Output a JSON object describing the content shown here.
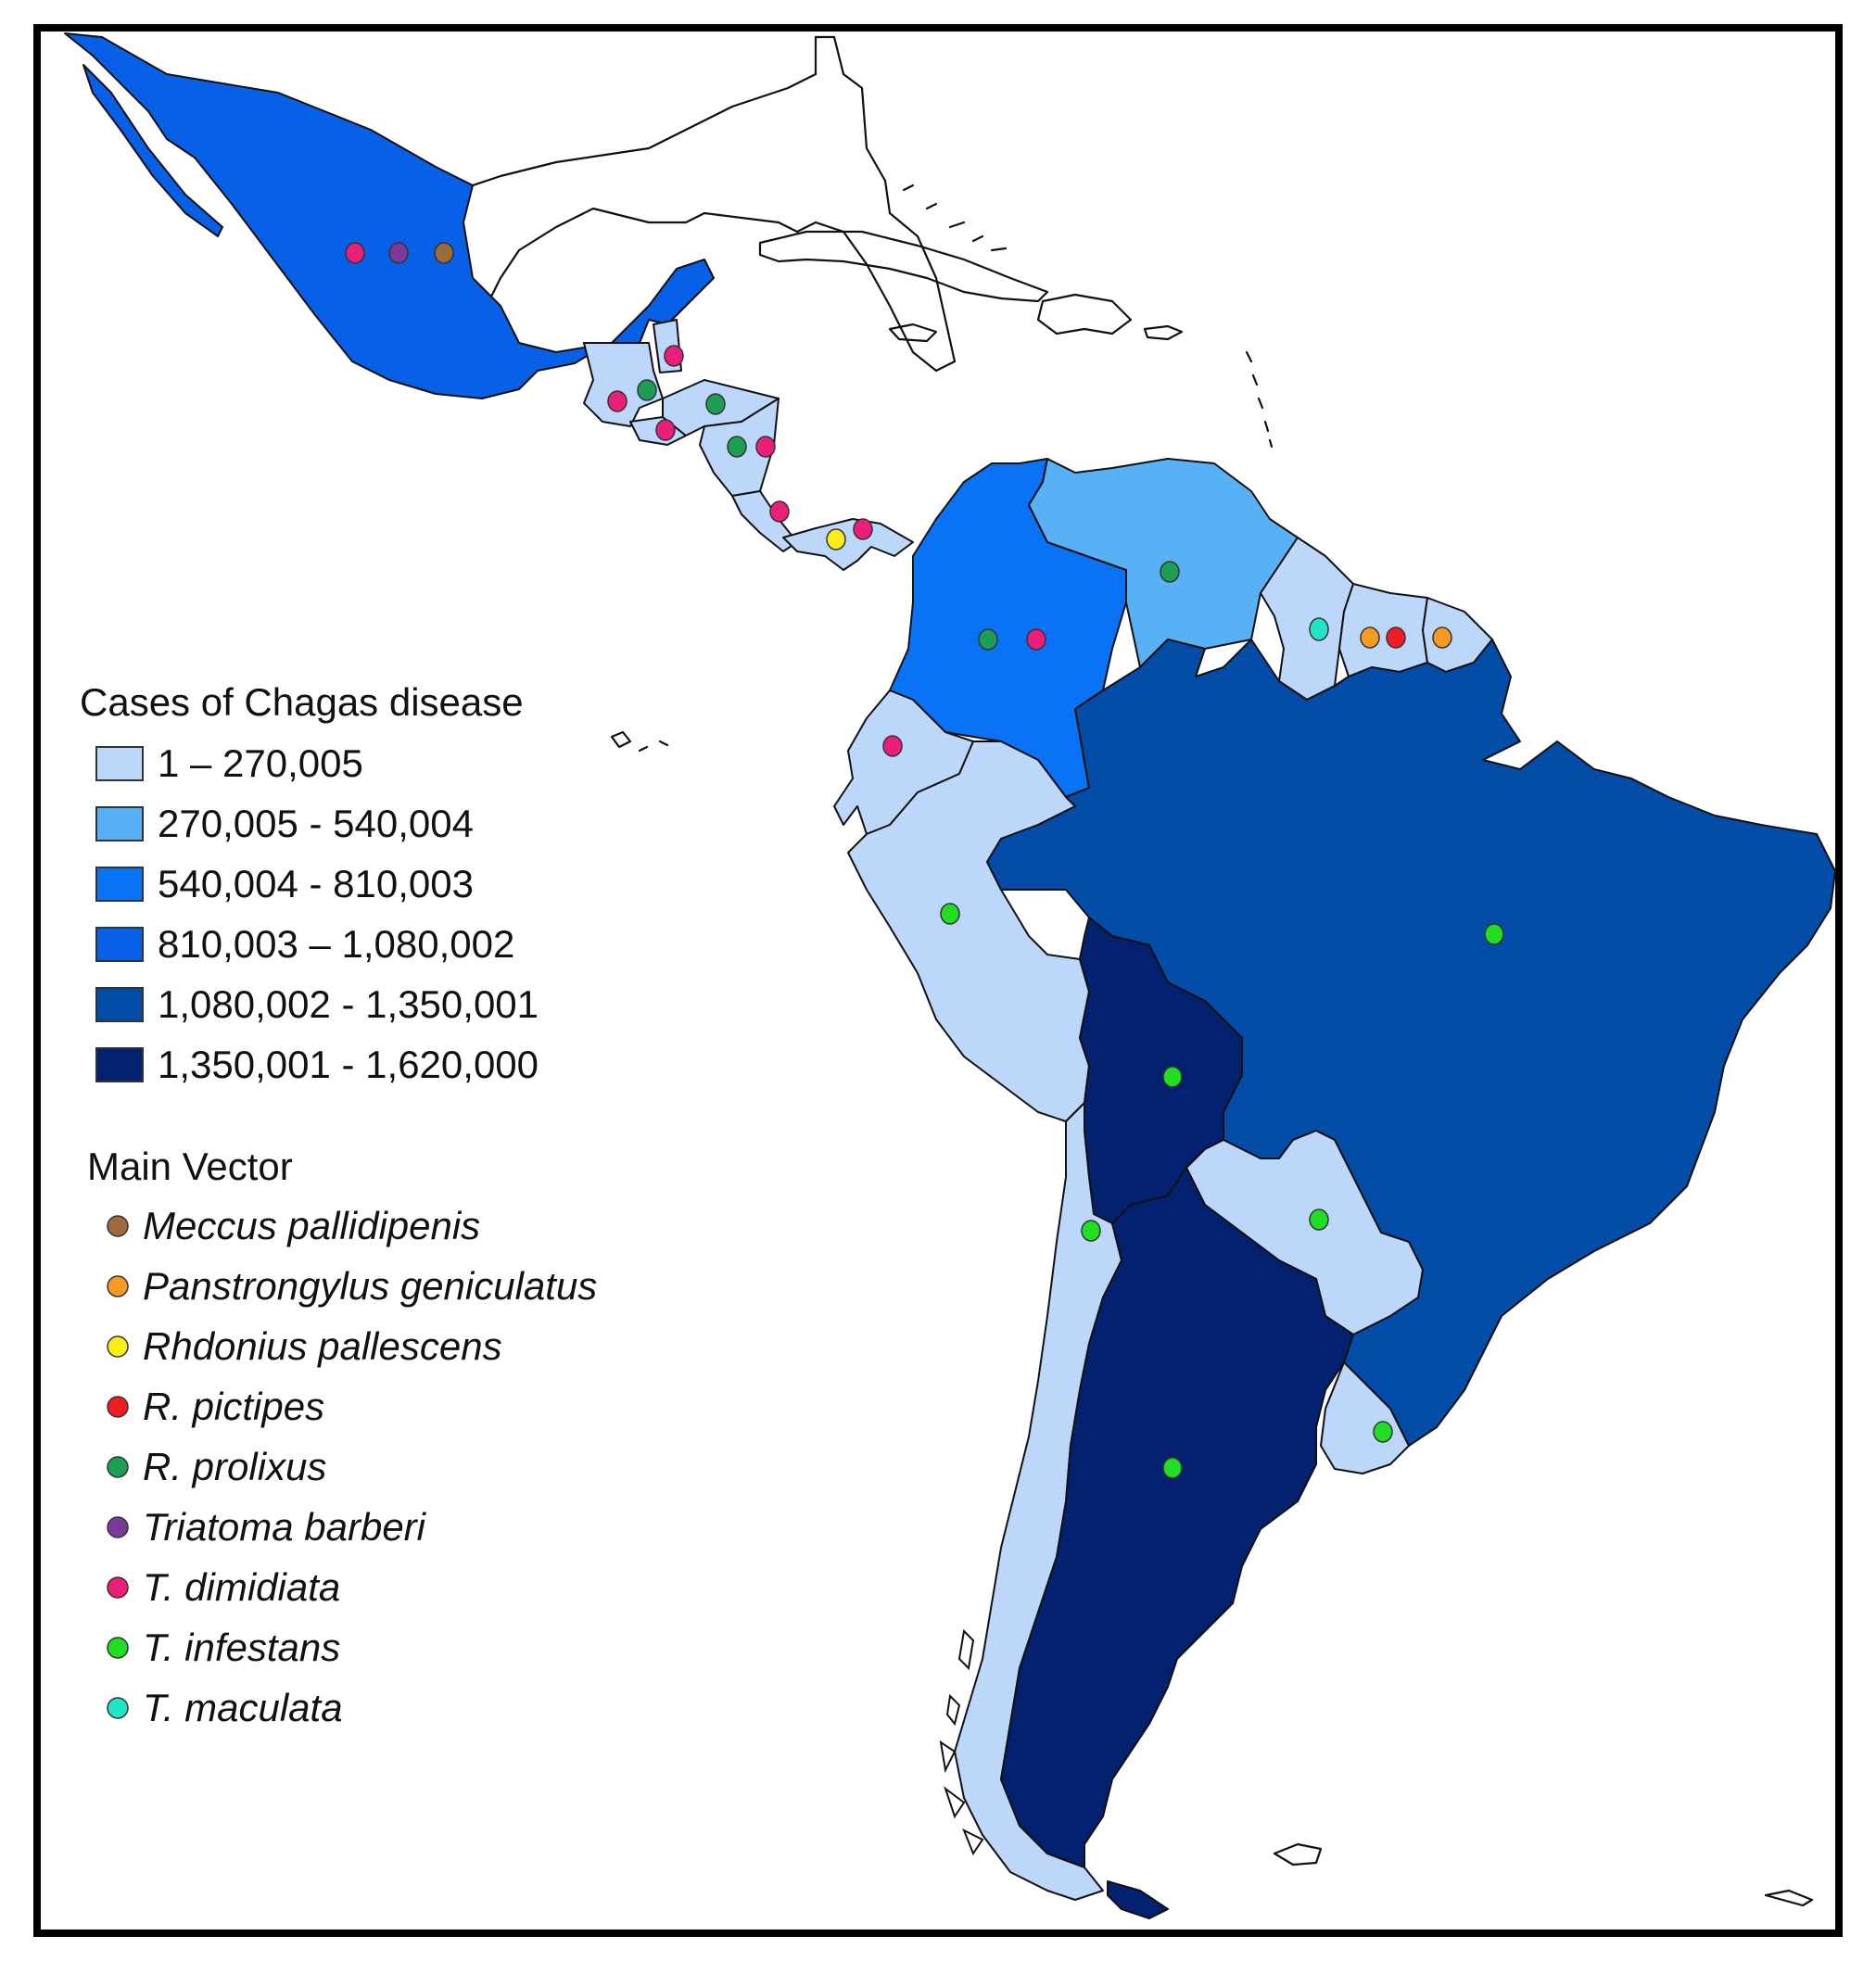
{
  "palette": {
    "c1": "#bdd7fb",
    "c2": "#58b0f5",
    "c3": "#0a72f4",
    "c4": "#0860e6",
    "c5": "#034ca8",
    "c6": "#03216e"
  },
  "legend_cases": {
    "title": "Cases of Chagas disease",
    "classes": [
      {
        "label": "1 – 270,005",
        "color": "#bdd7fb"
      },
      {
        "label": "270,005 - 540,004",
        "color": "#58b0f5"
      },
      {
        "label": "540,004 - 810,003",
        "color": "#0a72f4"
      },
      {
        "label": "810,003 – 1,080,002",
        "color": "#0860e6"
      },
      {
        "label": "1,080,002 - 1,350,001",
        "color": "#034ca8"
      },
      {
        "label": "1,350,001 - 1,620,000",
        "color": "#03216e"
      }
    ]
  },
  "legend_vectors": {
    "title": "Main Vector",
    "items": [
      {
        "label": "Meccus pallidipenis",
        "color": "#9c6a3c"
      },
      {
        "label": "Panstrongylus geniculatus",
        "color": "#f59a22"
      },
      {
        "label": "Rhdonius pallescens",
        "color": "#f7ee1a"
      },
      {
        "label": "R. pictipes",
        "color": "#ee1d24"
      },
      {
        "label": "R. prolixus",
        "color": "#1c9e55"
      },
      {
        "label": "Triatoma barberi",
        "color": "#7a3a9a"
      },
      {
        "label": "T. dimidiata",
        "color": "#ea1f7a"
      },
      {
        "label": "T. infestans",
        "color": "#22dd22"
      },
      {
        "label": "T. maculata",
        "color": "#22e5c8"
      }
    ]
  },
  "countries": [
    {
      "name": "mexico",
      "cases_class": 4,
      "vectors": [
        "T. dimidiata",
        "Triatoma barberi",
        "Meccus pallidipenis"
      ]
    },
    {
      "name": "guatemala",
      "cases_class": 1,
      "vectors": [
        "T. dimidiata",
        "R. prolixus"
      ]
    },
    {
      "name": "belize",
      "cases_class": 1,
      "vectors": [
        "T. dimidiata"
      ]
    },
    {
      "name": "el-salvador",
      "cases_class": 1,
      "vectors": [
        "T. dimidiata"
      ]
    },
    {
      "name": "honduras",
      "cases_class": 1,
      "vectors": [
        "R. prolixus"
      ]
    },
    {
      "name": "nicaragua",
      "cases_class": 1,
      "vectors": [
        "R. prolixus",
        "T. dimidiata"
      ]
    },
    {
      "name": "costa-rica",
      "cases_class": 1,
      "vectors": [
        "T. dimidiata"
      ]
    },
    {
      "name": "panama",
      "cases_class": 1,
      "vectors": [
        "Rhdonius pallescens",
        "T. dimidiata"
      ]
    },
    {
      "name": "colombia",
      "cases_class": 3,
      "vectors": [
        "R. prolixus",
        "T. dimidiata"
      ]
    },
    {
      "name": "venezuela",
      "cases_class": 2,
      "vectors": [
        "R. prolixus"
      ]
    },
    {
      "name": "guyana",
      "cases_class": 1,
      "vectors": [
        "T. maculata"
      ]
    },
    {
      "name": "suriname",
      "cases_class": 1,
      "vectors": [
        "Panstrongylus geniculatus",
        "R. pictipes"
      ]
    },
    {
      "name": "french-guiana",
      "cases_class": 1,
      "vectors": [
        "Panstrongylus geniculatus"
      ]
    },
    {
      "name": "ecuador",
      "cases_class": 1,
      "vectors": [
        "T. dimidiata"
      ]
    },
    {
      "name": "peru",
      "cases_class": 1,
      "vectors": [
        "T. infestans"
      ]
    },
    {
      "name": "brazil",
      "cases_class": 5,
      "vectors": [
        "T. infestans"
      ]
    },
    {
      "name": "bolivia",
      "cases_class": 6,
      "vectors": [
        "T. infestans"
      ]
    },
    {
      "name": "paraguay",
      "cases_class": 1,
      "vectors": [
        "T. infestans"
      ]
    },
    {
      "name": "chile",
      "cases_class": 1,
      "vectors": [
        "T. infestans"
      ]
    },
    {
      "name": "argentina",
      "cases_class": 6,
      "vectors": [
        "T. infestans"
      ]
    },
    {
      "name": "uruguay",
      "cases_class": 1,
      "vectors": [
        "T. infestans"
      ]
    }
  ]
}
